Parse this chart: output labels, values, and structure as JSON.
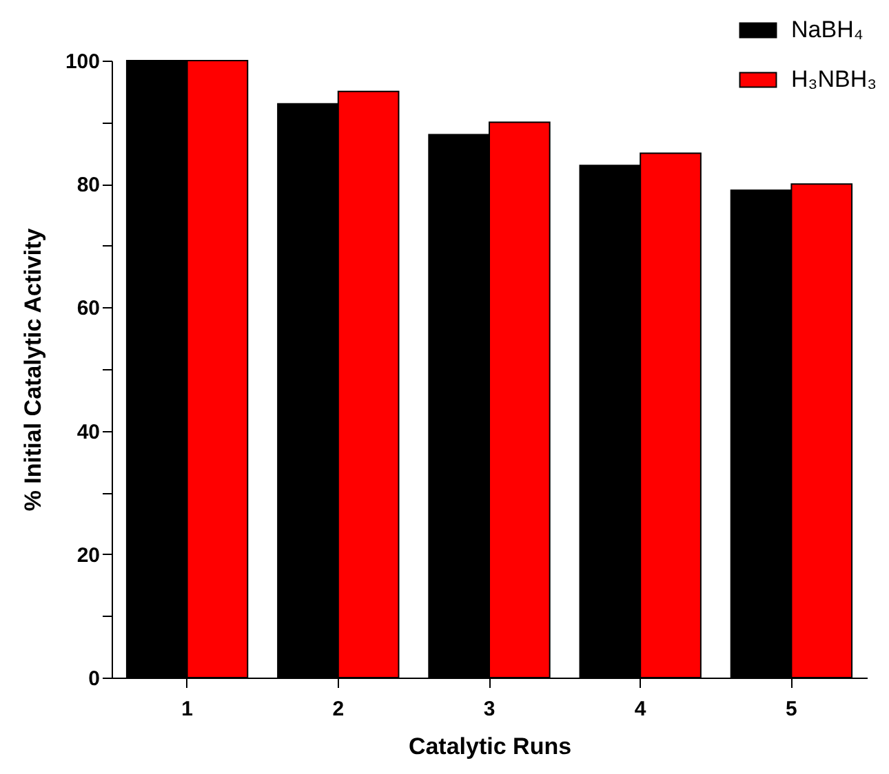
{
  "chart_data": {
    "type": "bar",
    "xlabel": "Catalytic Runs",
    "ylabel": "% Initial Catalytic Activity",
    "categories": [
      "1",
      "2",
      "3",
      "4",
      "5"
    ],
    "series": [
      {
        "name": "NaBH₄",
        "color": "#000000",
        "values": [
          100,
          93,
          88,
          83,
          79
        ]
      },
      {
        "name": "H₃NBH₃",
        "color": "#ff0000",
        "values": [
          100,
          95,
          90,
          85,
          80
        ]
      }
    ],
    "ylim": [
      0,
      100
    ],
    "yticks": [
      0,
      {
        "value": 10,
        "label": null
      },
      20,
      {
        "value": 30,
        "label": null
      },
      40,
      {
        "value": 50,
        "label": null
      },
      60,
      {
        "value": 70,
        "label": null
      },
      80,
      {
        "value": 90,
        "label": null
      },
      100
    ],
    "grid": false,
    "legend": "top right"
  }
}
